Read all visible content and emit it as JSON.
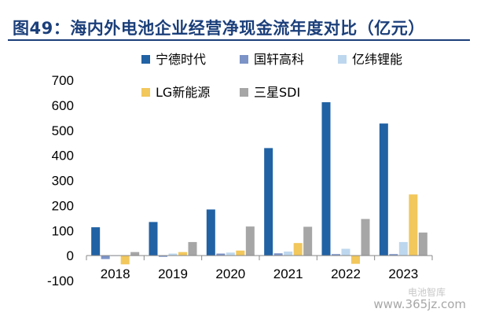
{
  "page": {
    "title": "图49：海内外电池企业经营净现金流年度对比（亿元）",
    "watermark": "www.365jz.com",
    "watermark_top": "电池智库"
  },
  "chart_data": {
    "type": "bar",
    "title": "图49：海内外电池企业经营净现金流年度对比（亿元）",
    "xlabel": "",
    "ylabel": "",
    "ylim": [
      -100,
      700
    ],
    "yticks": [
      -100,
      0,
      100,
      200,
      300,
      400,
      500,
      600,
      700
    ],
    "grid": false,
    "legend_position": "top-left",
    "categories": [
      "2018",
      "2019",
      "2020",
      "2021",
      "2022",
      "2023"
    ],
    "series": [
      {
        "name": "宁德时代",
        "color": "#2162a4",
        "values": [
          113,
          134,
          184,
          429,
          612,
          527
        ]
      },
      {
        "name": "国轩高科",
        "color": "#7b93c6",
        "values": [
          -14,
          -5,
          8,
          9,
          6,
          6
        ]
      },
      {
        "name": "亿纬锂能",
        "color": "#bdd7ee",
        "values": [
          -2,
          8,
          12,
          16,
          27,
          54
        ]
      },
      {
        "name": "LG新能源",
        "color": "#f2c75c",
        "values": [
          -35,
          14,
          20,
          50,
          -33,
          244
        ]
      },
      {
        "name": "三星SDI",
        "color": "#a6a6a6",
        "values": [
          14,
          54,
          116,
          115,
          146,
          92
        ]
      }
    ]
  }
}
